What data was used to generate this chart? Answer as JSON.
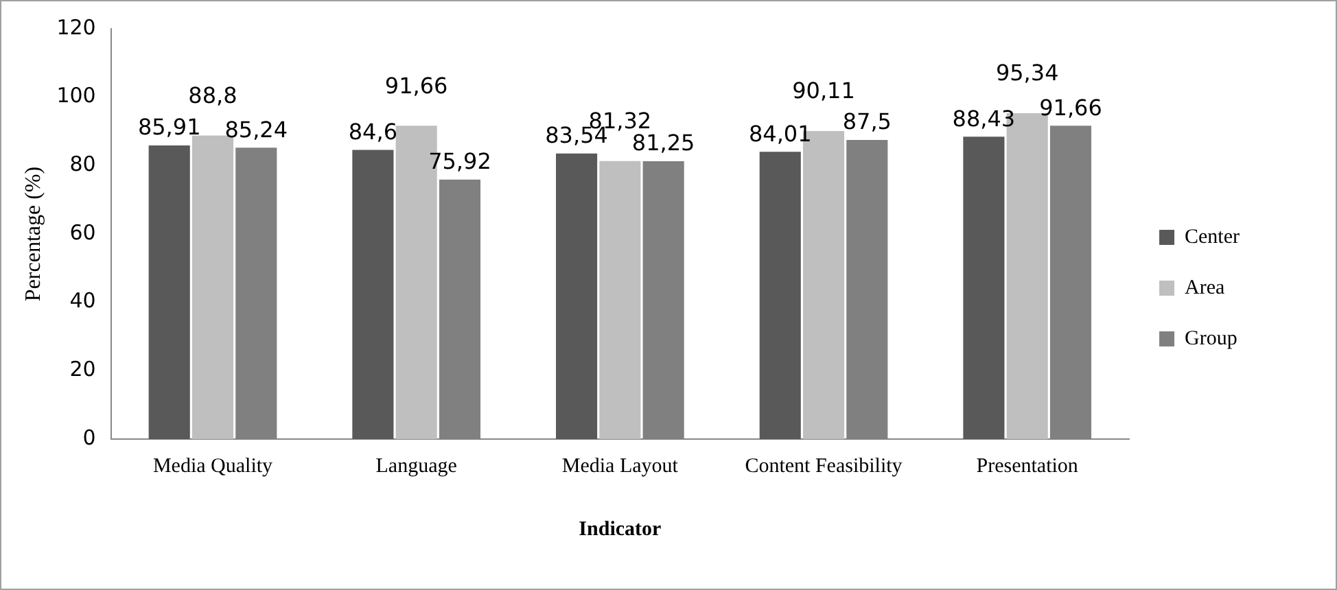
{
  "chart_data": {
    "type": "bar",
    "xlabel": "Indicator",
    "ylabel": "Percentage (%)",
    "categories": [
      "Media Quality",
      "Language",
      "Media Layout",
      "Content Feasibility",
      "Presentation"
    ],
    "series": [
      {
        "name": "Center",
        "color": "#595959",
        "values": [
          85.91,
          84.6,
          83.54,
          84.01,
          88.43
        ],
        "value_labels": [
          "85,91",
          "84,6",
          "83,54",
          "84,01",
          "88,43"
        ]
      },
      {
        "name": "Area",
        "color": "#bfbfbf",
        "values": [
          88.8,
          91.66,
          81.32,
          90.11,
          95.34
        ],
        "value_labels": [
          "88,8",
          "91,66",
          "81,32",
          "90,11",
          "95,34"
        ]
      },
      {
        "name": "Group",
        "color": "#808080",
        "values": [
          85.24,
          75.92,
          81.25,
          87.5,
          91.66
        ],
        "value_labels": [
          "85,24",
          "75,92",
          "81,25",
          "87,5",
          "91,66"
        ]
      }
    ],
    "ylim": [
      0,
      120
    ],
    "yticks": [
      0,
      20,
      40,
      60,
      80,
      100,
      120
    ],
    "grid": false,
    "legend": "right"
  }
}
